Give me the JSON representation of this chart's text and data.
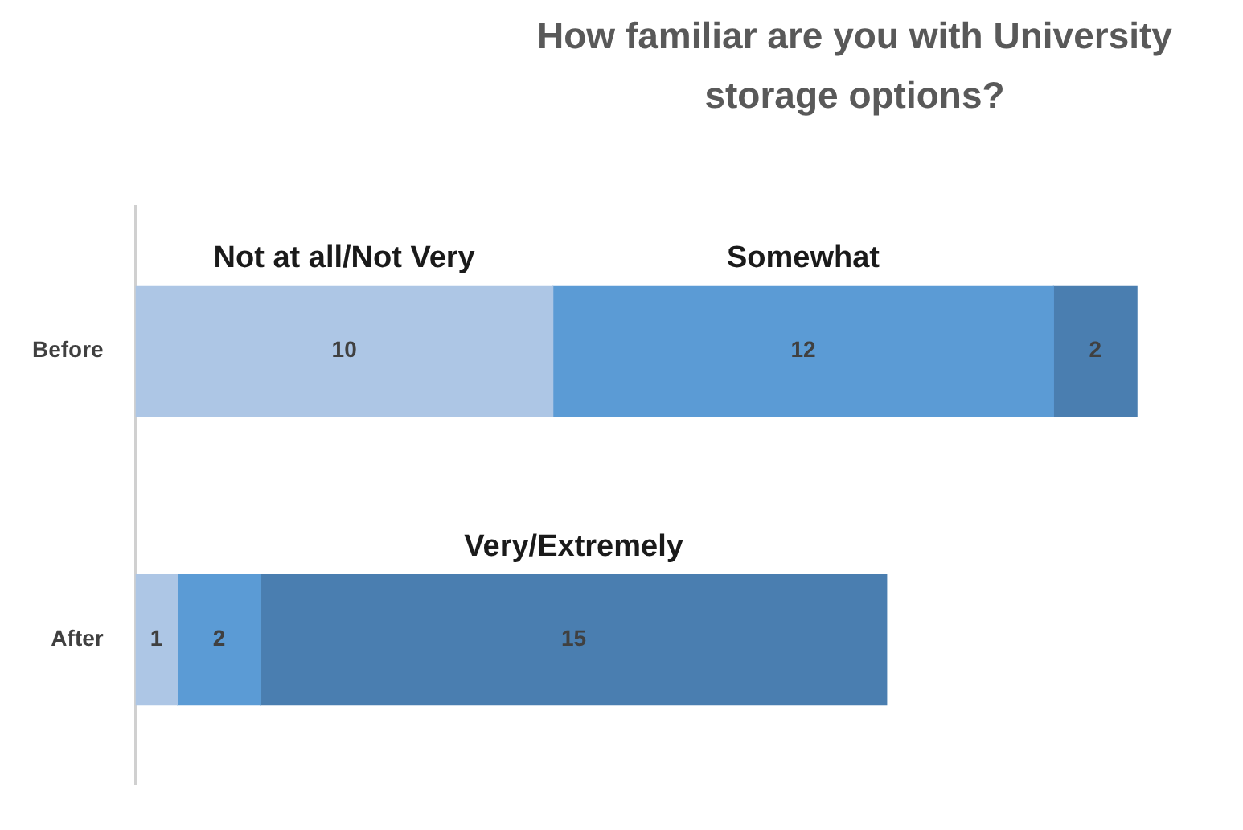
{
  "chart_data": {
    "type": "bar",
    "orientation": "horizontal",
    "stacked": true,
    "title": "How familiar are you with University storage options?",
    "categories": [
      "Before",
      "After"
    ],
    "series": [
      {
        "name": "Not at all/Not Very",
        "color": "#adc6e5",
        "values": [
          10,
          1
        ]
      },
      {
        "name": "Somewhat",
        "color": "#5b9bd5",
        "values": [
          12,
          2
        ]
      },
      {
        "name": "Very/Extremely",
        "color": "#4a7eb0",
        "values": [
          2,
          15
        ]
      }
    ],
    "tick_labels": "y",
    "data_labels": true,
    "legend": false
  }
}
